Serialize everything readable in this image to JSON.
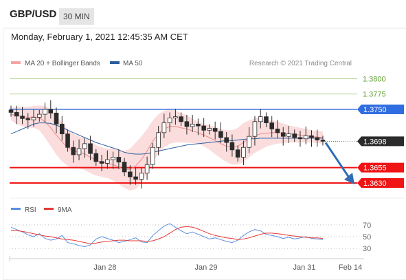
{
  "header": {
    "pair": "GBP/USD",
    "timeframe": "30 MIN"
  },
  "datetime": "Monday, February 1, 2021 12:45:35 AM CET",
  "legend": {
    "ma20_bb": "MA 20 + Bollinger Bands",
    "ma50": "MA 50",
    "credit": "Research © 2021 Trading Central"
  },
  "rsi_legend": {
    "rsi": "RSI",
    "ma9": "9MA"
  },
  "colors": {
    "resistance": "#4a7fe0",
    "support": "#f01414",
    "target": "#7cb342",
    "ma50": "#2c5f9e",
    "bb": "#f4a6a6",
    "candle": "#2b2b2b",
    "arrow": "#2f6db5",
    "rsi": "#5b8ee0",
    "rsi_ma": "#e53935"
  },
  "chart_data": [
    {
      "type": "candlestick",
      "title": "",
      "ylim": [
        1.3612,
        1.3815
      ],
      "x_ticks": [
        "Jan 28",
        "Jan 29",
        "Jan 31",
        "Feb 14"
      ],
      "levels": [
        {
          "label": "1.3800",
          "value": 1.38,
          "kind": "target"
        },
        {
          "label": "1.3775",
          "value": 1.3775,
          "kind": "target"
        },
        {
          "label": "1.3750",
          "value": 1.375,
          "kind": "resistance"
        },
        {
          "label": "1.3698",
          "value": 1.3698,
          "kind": "last"
        },
        {
          "label": "1.3655",
          "value": 1.3655,
          "kind": "support"
        },
        {
          "label": "1.3630",
          "value": 1.363,
          "kind": "support"
        }
      ],
      "close_series": [
        1.3745,
        1.3739,
        1.3735,
        1.3733,
        1.3737,
        1.3742,
        1.375,
        1.3744,
        1.3726,
        1.371,
        1.3688,
        1.3676,
        1.3686,
        1.3694,
        1.3678,
        1.3665,
        1.3662,
        1.3668,
        1.3672,
        1.3664,
        1.3648,
        1.364,
        1.3636,
        1.3646,
        1.366,
        1.3688,
        1.3712,
        1.3728,
        1.3736,
        1.3738,
        1.373,
        1.3722,
        1.3726,
        1.3723,
        1.3716,
        1.3719,
        1.3714,
        1.3704,
        1.3696,
        1.3684,
        1.3672,
        1.3688,
        1.3706,
        1.373,
        1.3738,
        1.3728,
        1.3718,
        1.3712,
        1.3706,
        1.371,
        1.3704,
        1.3702,
        1.3707,
        1.3704,
        1.37,
        1.3698
      ],
      "ma20": [
        1.3742,
        1.374,
        1.3738,
        1.3737,
        1.3738,
        1.3736,
        1.373,
        1.372,
        1.3708,
        1.3697,
        1.3688,
        1.3682,
        1.368,
        1.3677,
        1.3672,
        1.3667,
        1.3664,
        1.3662,
        1.366,
        1.3656,
        1.3652,
        1.3652,
        1.3658,
        1.3668,
        1.3682,
        1.3698,
        1.371,
        1.3718,
        1.3722,
        1.3722,
        1.372,
        1.3718,
        1.3715,
        1.3712,
        1.3708,
        1.3704,
        1.3699,
        1.3694,
        1.369,
        1.3688,
        1.369,
        1.3696,
        1.3702,
        1.3707,
        1.371,
        1.3711,
        1.3712,
        1.3712,
        1.3711,
        1.371,
        1.3709,
        1.3708,
        1.3707,
        1.3706,
        1.3705,
        1.3704
      ],
      "bb_width": [
        0.001,
        0.0014,
        0.0016,
        0.0017,
        0.0018,
        0.002,
        0.0026,
        0.003,
        0.0032,
        0.0032,
        0.003,
        0.0028,
        0.0026,
        0.0026,
        0.0026,
        0.0025,
        0.0024,
        0.0024,
        0.0026,
        0.0028,
        0.003,
        0.0034,
        0.0038,
        0.0038,
        0.0036,
        0.0034,
        0.0032,
        0.003,
        0.0028,
        0.0026,
        0.0024,
        0.0022,
        0.002,
        0.0018,
        0.0018,
        0.002,
        0.0022,
        0.0024,
        0.0026,
        0.0028,
        0.003,
        0.0032,
        0.003,
        0.0028,
        0.0026,
        0.0022,
        0.002,
        0.0018,
        0.0016,
        0.0014,
        0.0013,
        0.0012,
        0.0011,
        0.001,
        0.001,
        0.001
      ],
      "ma50": [
        1.371,
        1.3714,
        1.3718,
        1.3722,
        1.3726,
        1.3728,
        1.3728,
        1.3727,
        1.3724,
        1.3721,
        1.3716,
        1.3712,
        1.3708,
        1.3704,
        1.37,
        1.3696,
        1.3693,
        1.369,
        1.3687,
        1.3684,
        1.368,
        1.3678,
        1.3677,
        1.3677,
        1.3678,
        1.368,
        1.3682,
        1.3684,
        1.3686,
        1.3688,
        1.369,
        1.3692,
        1.3693,
        1.3694,
        1.3695,
        1.3696,
        1.3697,
        1.3698,
        1.3699,
        1.3699,
        1.37,
        1.3701,
        1.3702,
        1.3702,
        1.3703,
        1.3703,
        1.3703,
        1.3703,
        1.3703,
        1.3703,
        1.3703,
        1.3703,
        1.3703,
        1.3703,
        1.3703,
        1.3703
      ],
      "forecast_arrow": {
        "from": 1.3698,
        "to": 1.363
      }
    },
    {
      "type": "line",
      "title": "",
      "ylim": [
        22,
        78
      ],
      "y_ticks": [
        70,
        50,
        30
      ],
      "series": [
        {
          "name": "RSI",
          "values": [
            66,
            62,
            58,
            53,
            50,
            55,
            47,
            44,
            46,
            52,
            40,
            38,
            35,
            33,
            36,
            46,
            50,
            47,
            44,
            40,
            42,
            45,
            48,
            41,
            40,
            52,
            60,
            68,
            72,
            66,
            60,
            55,
            58,
            54,
            50,
            46,
            48,
            45,
            42,
            40,
            44,
            52,
            58,
            62,
            60,
            54,
            52,
            50,
            47,
            49,
            46,
            48,
            50,
            47,
            46,
            45
          ]
        },
        {
          "name": "9MA",
          "values": [
            60,
            60,
            59,
            57,
            55,
            53,
            51,
            50,
            48,
            46,
            45,
            44,
            42,
            40,
            38,
            39,
            41,
            42,
            43,
            44,
            44,
            43,
            43,
            43,
            42,
            43,
            46,
            50,
            56,
            62,
            66,
            67,
            66,
            63,
            59,
            55,
            52,
            50,
            48,
            47,
            45,
            46,
            48,
            51,
            54,
            56,
            56,
            55,
            54,
            52,
            51,
            50,
            49,
            48,
            48,
            47
          ]
        }
      ]
    }
  ]
}
